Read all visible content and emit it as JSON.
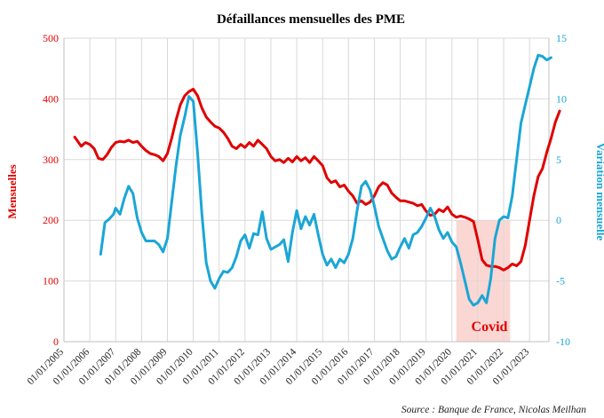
{
  "chart_data": {
    "type": "line",
    "title": "Défaillances mensuelles des PME",
    "source": "Source : Banque de France, Nicolas Meilhan",
    "annotation": "Covid",
    "covid_period": {
      "start": "2020-03",
      "end": "2022-04"
    },
    "y_left": {
      "label": "Mensuelles",
      "ylim": [
        0,
        500
      ],
      "ticks": [
        "0",
        "100",
        "200",
        "300",
        "400",
        "500"
      ],
      "color": "#e00000"
    },
    "y_right": {
      "label": "Variation mensuelle",
      "ylim": [
        -10,
        15
      ],
      "ticks": [
        "-10",
        "-5",
        "0",
        "5",
        "10",
        "15"
      ],
      "color": "#1aa6d6"
    },
    "x_ticks": [
      "01/01/2005",
      "01/01/2006",
      "01/01/2007",
      "01/01/2008",
      "01/01/2009",
      "01/01/2010",
      "01/01/2011",
      "01/01/2012",
      "01/01/2013",
      "01/01/2014",
      "01/01/2015",
      "01/01/2016",
      "01/01/2017",
      "01/01/2018",
      "01/01/2019",
      "01/01/2020",
      "01/01/2021",
      "01/01/2022",
      "01/01/2023"
    ],
    "grid": true,
    "series": [
      {
        "axis": "left",
        "color": "#e00000",
        "points": [
          [
            "2005-06",
            337
          ],
          [
            "2005-07",
            332
          ],
          [
            "2005-09",
            322
          ],
          [
            "2005-11",
            328
          ],
          [
            "2006-01",
            325
          ],
          [
            "2006-03",
            318
          ],
          [
            "2006-05",
            302
          ],
          [
            "2006-07",
            300
          ],
          [
            "2006-09",
            308
          ],
          [
            "2006-11",
            320
          ],
          [
            "2007-01",
            328
          ],
          [
            "2007-03",
            330
          ],
          [
            "2007-05",
            329
          ],
          [
            "2007-07",
            332
          ],
          [
            "2007-09",
            328
          ],
          [
            "2007-11",
            330
          ],
          [
            "2008-01",
            322
          ],
          [
            "2008-03",
            315
          ],
          [
            "2008-05",
            310
          ],
          [
            "2008-07",
            308
          ],
          [
            "2008-09",
            305
          ],
          [
            "2008-11",
            298
          ],
          [
            "2009-01",
            310
          ],
          [
            "2009-03",
            335
          ],
          [
            "2009-05",
            365
          ],
          [
            "2009-07",
            390
          ],
          [
            "2009-09",
            405
          ],
          [
            "2009-11",
            412
          ],
          [
            "2010-01",
            416
          ],
          [
            "2010-03",
            405
          ],
          [
            "2010-05",
            385
          ],
          [
            "2010-07",
            370
          ],
          [
            "2010-09",
            362
          ],
          [
            "2010-11",
            355
          ],
          [
            "2011-01",
            352
          ],
          [
            "2011-03",
            345
          ],
          [
            "2011-05",
            335
          ],
          [
            "2011-07",
            322
          ],
          [
            "2011-09",
            318
          ],
          [
            "2011-11",
            325
          ],
          [
            "2012-01",
            320
          ],
          [
            "2012-03",
            328
          ],
          [
            "2012-05",
            322
          ],
          [
            "2012-07",
            332
          ],
          [
            "2012-09",
            325
          ],
          [
            "2012-11",
            318
          ],
          [
            "2013-01",
            305
          ],
          [
            "2013-03",
            298
          ],
          [
            "2013-05",
            300
          ],
          [
            "2013-07",
            295
          ],
          [
            "2013-09",
            302
          ],
          [
            "2013-11",
            296
          ],
          [
            "2014-01",
            305
          ],
          [
            "2014-03",
            298
          ],
          [
            "2014-05",
            303
          ],
          [
            "2014-07",
            295
          ],
          [
            "2014-09",
            305
          ],
          [
            "2014-11",
            298
          ],
          [
            "2015-01",
            290
          ],
          [
            "2015-03",
            270
          ],
          [
            "2015-05",
            262
          ],
          [
            "2015-07",
            265
          ],
          [
            "2015-09",
            255
          ],
          [
            "2015-11",
            258
          ],
          [
            "2016-01",
            248
          ],
          [
            "2016-03",
            240
          ],
          [
            "2016-05",
            228
          ],
          [
            "2016-07",
            232
          ],
          [
            "2016-09",
            226
          ],
          [
            "2016-11",
            230
          ],
          [
            "2017-01",
            240
          ],
          [
            "2017-03",
            255
          ],
          [
            "2017-05",
            262
          ],
          [
            "2017-07",
            258
          ],
          [
            "2017-09",
            245
          ],
          [
            "2017-11",
            238
          ],
          [
            "2018-01",
            232
          ],
          [
            "2018-03",
            232
          ],
          [
            "2018-05",
            230
          ],
          [
            "2018-07",
            228
          ],
          [
            "2018-09",
            224
          ],
          [
            "2018-11",
            226
          ],
          [
            "2019-01",
            215
          ],
          [
            "2019-03",
            208
          ],
          [
            "2019-05",
            210
          ],
          [
            "2019-07",
            218
          ],
          [
            "2019-09",
            214
          ],
          [
            "2019-11",
            222
          ],
          [
            "2020-01",
            210
          ],
          [
            "2020-03",
            205
          ],
          [
            "2020-05",
            207
          ],
          [
            "2020-07",
            205
          ],
          [
            "2020-09",
            202
          ],
          [
            "2020-11",
            198
          ],
          [
            "2021-01",
            168
          ],
          [
            "2021-03",
            135
          ],
          [
            "2021-05",
            126
          ],
          [
            "2021-07",
            124
          ],
          [
            "2021-09",
            124
          ],
          [
            "2021-11",
            122
          ],
          [
            "2022-01",
            118
          ],
          [
            "2022-03",
            122
          ],
          [
            "2022-05",
            128
          ],
          [
            "2022-07",
            125
          ],
          [
            "2022-09",
            132
          ],
          [
            "2022-11",
            158
          ],
          [
            "2023-01",
            200
          ],
          [
            "2023-03",
            240
          ],
          [
            "2023-05",
            272
          ],
          [
            "2023-07",
            285
          ],
          [
            "2023-09",
            312
          ],
          [
            "2023-11",
            335
          ],
          [
            "2024-01",
            362
          ],
          [
            "2024-03",
            380
          ]
        ]
      },
      {
        "axis": "right",
        "color": "#1aa6d6",
        "points": [
          [
            "2006-06",
            -2.8
          ],
          [
            "2006-08",
            -0.2
          ],
          [
            "2006-10",
            0.1
          ],
          [
            "2006-12",
            0.5
          ],
          [
            "2007-01",
            1.0
          ],
          [
            "2007-03",
            0.5
          ],
          [
            "2007-05",
            1.8
          ],
          [
            "2007-07",
            2.8
          ],
          [
            "2007-09",
            2.2
          ],
          [
            "2007-11",
            0.2
          ],
          [
            "2008-01",
            -1.0
          ],
          [
            "2008-03",
            -1.7
          ],
          [
            "2008-05",
            -1.7
          ],
          [
            "2008-07",
            -1.7
          ],
          [
            "2008-09",
            -2.0
          ],
          [
            "2008-11",
            -2.6
          ],
          [
            "2009-01",
            -1.5
          ],
          [
            "2009-03",
            1.5
          ],
          [
            "2009-05",
            4.5
          ],
          [
            "2009-07",
            7.0
          ],
          [
            "2009-09",
            8.5
          ],
          [
            "2009-11",
            10.2
          ],
          [
            "2010-01",
            9.8
          ],
          [
            "2010-03",
            5.5
          ],
          [
            "2010-05",
            0.5
          ],
          [
            "2010-07",
            -3.5
          ],
          [
            "2010-09",
            -5.0
          ],
          [
            "2010-11",
            -5.6
          ],
          [
            "2011-01",
            -4.8
          ],
          [
            "2011-03",
            -4.2
          ],
          [
            "2011-05",
            -4.3
          ],
          [
            "2011-07",
            -3.9
          ],
          [
            "2011-09",
            -3.0
          ],
          [
            "2011-11",
            -1.7
          ],
          [
            "2012-01",
            -1.2
          ],
          [
            "2012-03",
            -2.3
          ],
          [
            "2012-05",
            -1.1
          ],
          [
            "2012-07",
            -1.2
          ],
          [
            "2012-09",
            0.7
          ],
          [
            "2012-11",
            -1.5
          ],
          [
            "2013-01",
            -2.4
          ],
          [
            "2013-03",
            -2.2
          ],
          [
            "2013-05",
            -2.0
          ],
          [
            "2013-07",
            -1.6
          ],
          [
            "2013-09",
            -3.4
          ],
          [
            "2013-11",
            -1.0
          ],
          [
            "2014-01",
            0.8
          ],
          [
            "2014-03",
            -0.7
          ],
          [
            "2014-05",
            0.3
          ],
          [
            "2014-07",
            -0.4
          ],
          [
            "2014-09",
            0.5
          ],
          [
            "2014-11",
            -1.2
          ],
          [
            "2015-01",
            -2.8
          ],
          [
            "2015-03",
            -3.7
          ],
          [
            "2015-05",
            -3.2
          ],
          [
            "2015-07",
            -3.9
          ],
          [
            "2015-09",
            -3.2
          ],
          [
            "2015-11",
            -3.5
          ],
          [
            "2016-01",
            -2.8
          ],
          [
            "2016-03",
            -1.5
          ],
          [
            "2016-05",
            0.8
          ],
          [
            "2016-07",
            2.8
          ],
          [
            "2016-09",
            3.2
          ],
          [
            "2016-11",
            2.5
          ],
          [
            "2017-01",
            1.2
          ],
          [
            "2017-03",
            -0.5
          ],
          [
            "2017-05",
            -1.5
          ],
          [
            "2017-07",
            -2.5
          ],
          [
            "2017-09",
            -3.2
          ],
          [
            "2017-11",
            -3.0
          ],
          [
            "2018-01",
            -2.2
          ],
          [
            "2018-03",
            -1.5
          ],
          [
            "2018-05",
            -2.3
          ],
          [
            "2018-07",
            -1.2
          ],
          [
            "2018-09",
            -1.0
          ],
          [
            "2018-11",
            -0.5
          ],
          [
            "2019-01",
            0.2
          ],
          [
            "2019-03",
            1.0
          ],
          [
            "2019-05",
            0.3
          ],
          [
            "2019-07",
            -0.8
          ],
          [
            "2019-09",
            -1.5
          ],
          [
            "2019-11",
            -1.0
          ],
          [
            "2020-01",
            -1.8
          ],
          [
            "2020-03",
            -2.2
          ],
          [
            "2020-05",
            -3.5
          ],
          [
            "2020-07",
            -5.0
          ],
          [
            "2020-09",
            -6.5
          ],
          [
            "2020-11",
            -7.0
          ],
          [
            "2021-01",
            -6.8
          ],
          [
            "2021-03",
            -6.2
          ],
          [
            "2021-05",
            -6.8
          ],
          [
            "2021-07",
            -4.8
          ],
          [
            "2021-09",
            -1.5
          ],
          [
            "2021-11",
            0.0
          ],
          [
            "2022-01",
            0.3
          ],
          [
            "2022-03",
            0.2
          ],
          [
            "2022-05",
            2.0
          ],
          [
            "2022-07",
            5.0
          ],
          [
            "2022-09",
            8.0
          ],
          [
            "2022-11",
            9.5
          ],
          [
            "2023-01",
            11.0
          ],
          [
            "2023-03",
            12.5
          ],
          [
            "2023-05",
            13.6
          ],
          [
            "2023-07",
            13.5
          ],
          [
            "2023-09",
            13.2
          ],
          [
            "2023-11",
            13.4
          ]
        ]
      }
    ]
  }
}
